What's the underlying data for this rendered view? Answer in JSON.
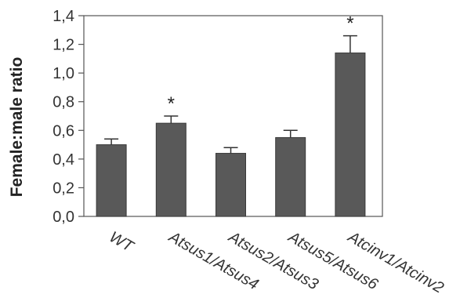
{
  "chart_data": {
    "type": "bar",
    "ylabel": "Female:male ratio",
    "xlabel": "",
    "ylim": [
      0,
      1.4
    ],
    "yticks": [
      0,
      0.2,
      0.4,
      0.6,
      0.8,
      1.0,
      1.2,
      1.4
    ],
    "ytick_labels": [
      "0,0",
      "0,2",
      "0,4",
      "0,6",
      "0,8",
      "1,0",
      "1,2",
      "1,4"
    ],
    "categories": [
      "WT",
      "Atsus1/Atsus4",
      "Atsus2/Atsus3",
      "Atsus5/Atsus6",
      "Atcinv1/Atcinv2"
    ],
    "values": [
      0.5,
      0.65,
      0.44,
      0.55,
      1.14
    ],
    "errors": [
      0.04,
      0.05,
      0.04,
      0.05,
      0.12
    ],
    "significance": [
      "",
      "*",
      "",
      "",
      "*"
    ],
    "italic_categories": [
      false,
      true,
      true,
      true,
      true
    ],
    "bar_color": "#595959",
    "grid": false,
    "legend": "none"
  }
}
